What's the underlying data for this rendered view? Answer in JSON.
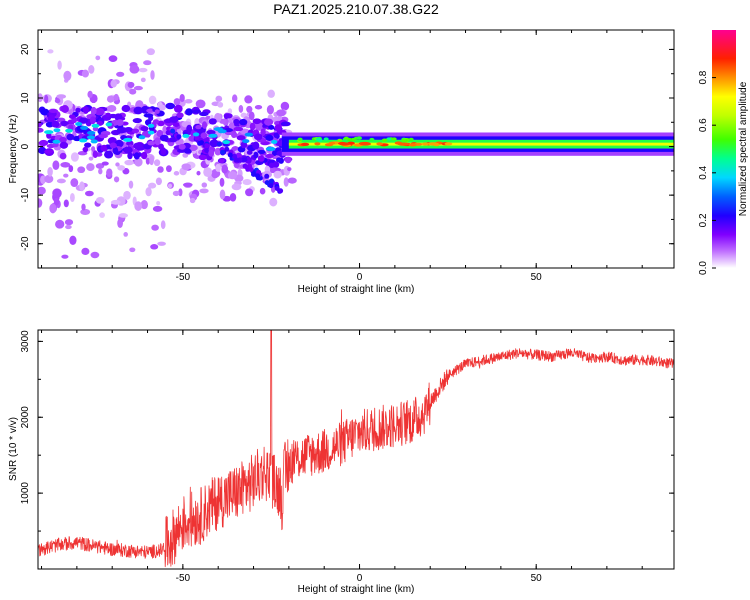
{
  "figure": {
    "title": "PAZ1.2025.210.07.38.G22"
  },
  "chart_data": [
    {
      "type": "heatmap",
      "name": "spectrogram",
      "xlabel": "Height of straight line (km)",
      "ylabel": "Frequency (Hz)",
      "xlim": [
        -91,
        89
      ],
      "ylim": [
        -25,
        24
      ],
      "xticks": [
        -50,
        0,
        50
      ],
      "yticks": [
        -20,
        -10,
        0,
        10,
        20
      ],
      "colorbar": {
        "label": "Normalized spectral amplitude",
        "range": [
          0,
          1
        ],
        "ticks": [
          0.0,
          0.2,
          0.4,
          0.6,
          0.8
        ],
        "tick_labels": [
          "0.0",
          "0.2",
          "0.4",
          "0.6",
          "0.8"
        ]
      },
      "features": {
        "steady_line": {
          "x_range": [
            -20,
            89
          ],
          "frequency": 0.5,
          "amplitude": 0.85
        },
        "descending_branch": {
          "points": [
            [
              -55,
              3
            ],
            [
              -40,
              0
            ],
            [
              -30,
              -5
            ],
            [
              -22,
              -9
            ]
          ]
        },
        "upper_branch": {
          "points": [
            [
              -55,
              3.5
            ],
            [
              -35,
              2
            ],
            [
              -25,
              0
            ],
            [
              -20,
              0
            ]
          ]
        },
        "diffuse_region": {
          "x_range": [
            -91,
            -55
          ],
          "frequency_range": [
            -25,
            24
          ]
        }
      }
    },
    {
      "type": "line",
      "name": "snr",
      "xlabel": "Height of straight line (km)",
      "ylabel": "SNR (10 * v/v)",
      "xlim": [
        -91,
        89
      ],
      "ylim": [
        0,
        3150
      ],
      "xticks": [
        -50,
        0,
        50
      ],
      "yticks": [
        1000,
        2000,
        3000
      ],
      "color": "#ee3333",
      "series": [
        {
          "x": [
            -91,
            -85,
            -80,
            -75,
            -70,
            -65,
            -60,
            -56,
            -53,
            -50,
            -45,
            -40,
            -35,
            -30,
            -27,
            -25,
            -22,
            -20,
            -18,
            -15,
            -10,
            -5,
            0,
            5,
            10,
            15,
            18,
            20,
            25,
            30,
            35,
            40,
            45,
            50,
            55,
            60,
            65,
            70,
            75,
            80,
            85,
            89
          ],
          "y": [
            250,
            320,
            350,
            300,
            260,
            240,
            220,
            250,
            400,
            600,
            700,
            900,
            1000,
            1150,
            1300,
            1200,
            1000,
            1400,
            1450,
            1500,
            1550,
            1650,
            1800,
            1850,
            1900,
            1950,
            2050,
            2200,
            2550,
            2700,
            2750,
            2800,
            2850,
            2820,
            2800,
            2850,
            2780,
            2800,
            2750,
            2760,
            2730,
            2700
          ]
        }
      ]
    }
  ],
  "colors": {
    "line": "#ee3333",
    "colormap": [
      "#ffffff",
      "#b000ff",
      "#6000ff",
      "#0000ff",
      "#00c8ff",
      "#00ff80",
      "#80ff00",
      "#ffff00",
      "#ff8000",
      "#ff0000",
      "#ff0090"
    ]
  }
}
